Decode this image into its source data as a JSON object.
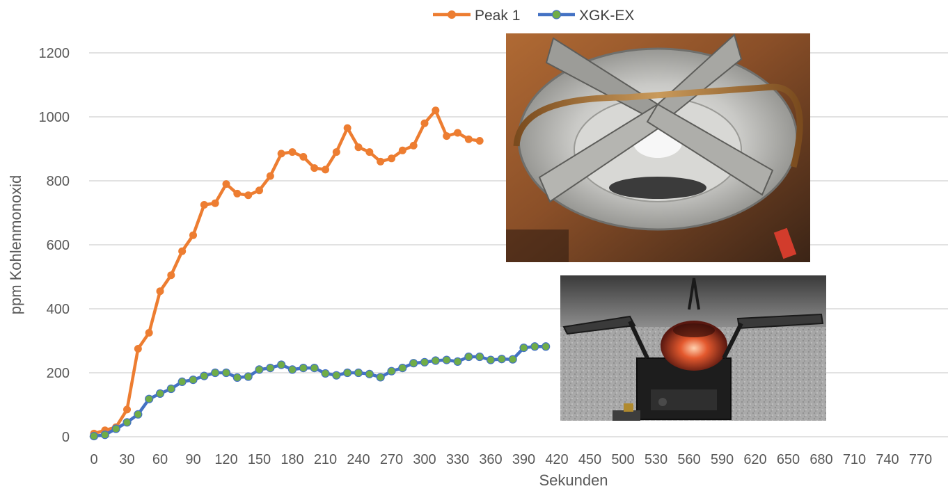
{
  "chart_data": {
    "type": "line",
    "xlabel": "Sekunden",
    "ylabel": "ppm Kohlenmonoxid",
    "xlim": [
      0,
      780
    ],
    "ylim": [
      0,
      1200
    ],
    "x_ticks": [
      0,
      30,
      60,
      90,
      120,
      150,
      180,
      210,
      240,
      270,
      300,
      330,
      360,
      390,
      420,
      450,
      500,
      530,
      560,
      590,
      620,
      650,
      680,
      710,
      740,
      770
    ],
    "y_ticks": [
      0,
      200,
      400,
      600,
      800,
      1000,
      1200
    ],
    "grid": "horizontal",
    "legend_position": "top",
    "series": [
      {
        "name": "Peak 1",
        "color": "#ED7D31",
        "x": [
          0,
          10,
          20,
          30,
          40,
          50,
          60,
          70,
          80,
          90,
          100,
          110,
          120,
          130,
          140,
          150,
          160,
          170,
          180,
          190,
          200,
          210,
          220,
          230,
          240,
          250,
          260,
          270,
          280,
          290,
          300,
          310,
          320,
          330,
          340,
          350
        ],
        "values": [
          10,
          20,
          30,
          85,
          275,
          325,
          455,
          505,
          580,
          630,
          725,
          730,
          790,
          760,
          755,
          770,
          815,
          885,
          890,
          875,
          840,
          835,
          890,
          965,
          905,
          890,
          860,
          870,
          895,
          910,
          980,
          1020,
          940,
          950,
          930,
          925
        ]
      },
      {
        "name": "XGK-EX",
        "color": "#4472C4",
        "marker_color": "#70AD47",
        "x": [
          0,
          10,
          20,
          30,
          40,
          50,
          60,
          70,
          80,
          90,
          100,
          110,
          120,
          130,
          140,
          150,
          160,
          170,
          180,
          190,
          200,
          210,
          220,
          230,
          240,
          250,
          260,
          270,
          280,
          290,
          300,
          310,
          320,
          330,
          340,
          350,
          360,
          370,
          380,
          390,
          400,
          410
        ],
        "values": [
          2,
          6,
          25,
          45,
          70,
          118,
          135,
          150,
          172,
          178,
          190,
          200,
          200,
          185,
          188,
          210,
          215,
          225,
          210,
          215,
          215,
          198,
          192,
          200,
          200,
          196,
          186,
          205,
          215,
          230,
          233,
          238,
          240,
          235,
          250,
          250,
          240,
          243,
          242,
          278,
          282,
          282
        ]
      }
    ]
  },
  "photos": [
    {
      "subject": "stove-burner-top-photo"
    },
    {
      "subject": "stove-on-ground-photo"
    }
  ]
}
